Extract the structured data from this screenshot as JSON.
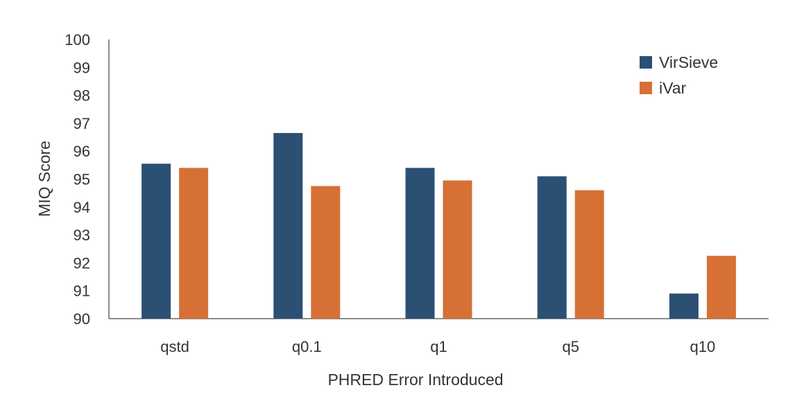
{
  "chart_data": {
    "type": "bar",
    "title": "",
    "xlabel": "PHRED Error Introduced",
    "ylabel": "MIQ Score",
    "categories": [
      "qstd",
      "q0.1",
      "q1",
      "q5",
      "q10"
    ],
    "series": [
      {
        "name": "VirSieve",
        "color": "#2b5074",
        "values": [
          95.55,
          96.65,
          95.4,
          95.1,
          90.9
        ]
      },
      {
        "name": "iVar",
        "color": "#d67034",
        "values": [
          95.4,
          94.75,
          94.95,
          94.6,
          92.25
        ]
      }
    ],
    "ylim": [
      90,
      100
    ],
    "yticks": [
      90,
      91,
      92,
      93,
      94,
      95,
      96,
      97,
      98,
      99,
      100
    ],
    "grid": false,
    "legend_position": "top-right"
  }
}
